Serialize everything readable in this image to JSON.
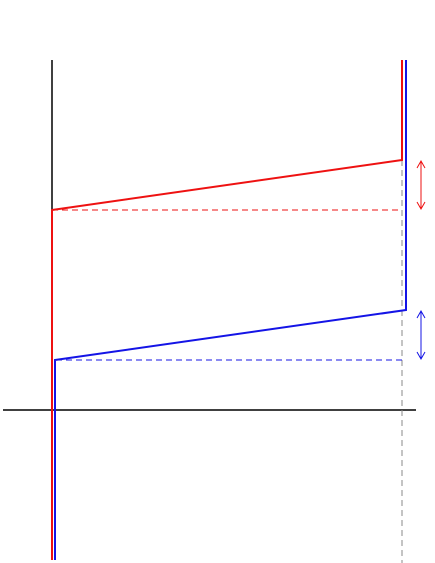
{
  "diagram": {
    "colors": {
      "background": "#ffffff",
      "axis": "#000000",
      "red": "#ee1111",
      "blue": "#1414e6",
      "guide": "#888888"
    }
  }
}
